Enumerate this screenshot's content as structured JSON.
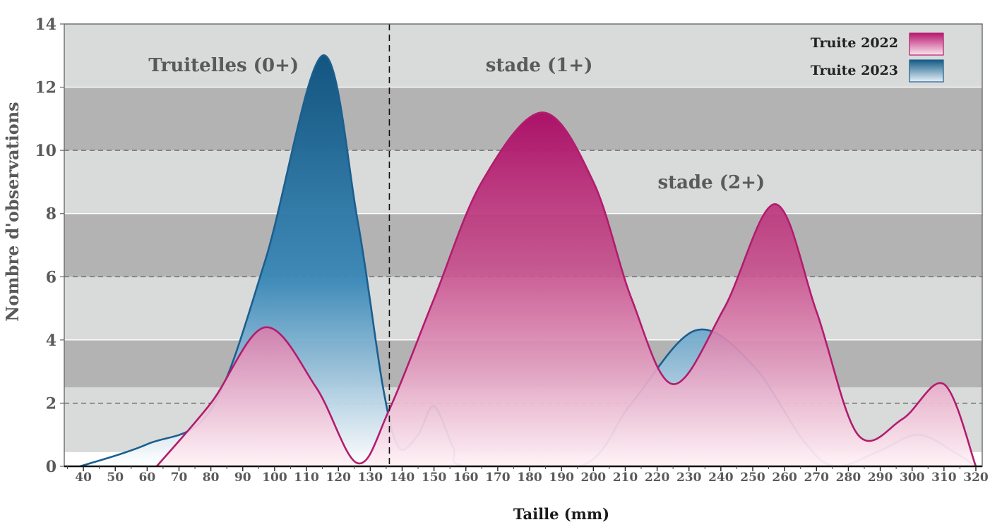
{
  "chart_data": {
    "type": "area",
    "xlabel": "Taille (mm)",
    "ylabel": "Nombre d'observations",
    "xlim": [
      34,
      322
    ],
    "ylim": [
      0,
      14
    ],
    "x_ticks": [
      40,
      50,
      60,
      70,
      80,
      90,
      100,
      110,
      120,
      130,
      140,
      150,
      160,
      170,
      180,
      190,
      200,
      210,
      220,
      230,
      240,
      250,
      260,
      270,
      280,
      290,
      300,
      310,
      320
    ],
    "y_ticks": [
      0,
      2,
      4,
      6,
      8,
      10,
      12,
      14
    ],
    "grid": true,
    "legend_position": "top-right",
    "zone_divider_x": 136,
    "zone_labels": [
      {
        "text": "Truitelles (0+)",
        "x": 84,
        "y": 12.7
      },
      {
        "text": "stade (1+)",
        "x": 183,
        "y": 12.7
      },
      {
        "text": "stade (2+)",
        "x": 237,
        "y": 9.0
      }
    ],
    "series": [
      {
        "name": "Truite 2022",
        "color": "#b21c6e",
        "x": [
          63,
          80,
          97,
          113,
          126,
          136,
          150,
          165,
          184,
          200,
          212,
          225,
          241,
          257,
          270,
          283,
          297,
          310,
          320
        ],
        "values": [
          0.0,
          2.0,
          4.4,
          2.5,
          0.1,
          1.8,
          5.3,
          9.0,
          11.2,
          9.0,
          5.3,
          2.6,
          5.0,
          8.3,
          4.9,
          1.0,
          1.5,
          2.6,
          0.0
        ]
      },
      {
        "name": "Truite 2023",
        "color": "#1a5f8e",
        "x": [
          39,
          60,
          80,
          97,
          115,
          126,
          134,
          139,
          145,
          150,
          156,
          160,
          196,
          212,
          232,
          250,
          266,
          276,
          290,
          302,
          314,
          320
        ],
        "values": [
          0.0,
          0.7,
          1.8,
          6.5,
          13.0,
          7.8,
          2.5,
          0.6,
          1.0,
          1.9,
          0.6,
          0.0,
          0.0,
          2.0,
          4.3,
          3.2,
          0.8,
          0.0,
          0.5,
          1.0,
          0.4,
          0.0
        ]
      }
    ]
  }
}
